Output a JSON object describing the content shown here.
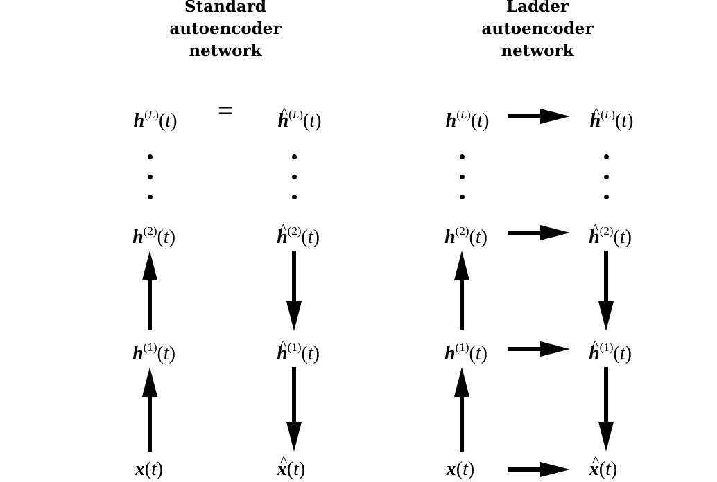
{
  "standard": {
    "title": [
      "Standard",
      "autoencoder",
      "network"
    ],
    "relation": "=",
    "encoder": {
      "top": {
        "sup": "L",
        "arg": "t"
      },
      "l2": {
        "sup": "2",
        "arg": "t"
      },
      "l1": {
        "sup": "1",
        "arg": "t"
      },
      "input": {
        "arg": "t"
      }
    },
    "decoder": {
      "top": {
        "sup": "L",
        "arg": "t"
      },
      "l2": {
        "sup": "2",
        "arg": "t"
      },
      "l1": {
        "sup": "1",
        "arg": "t"
      },
      "input": {
        "arg": "t"
      }
    }
  },
  "ladder": {
    "title": [
      "Ladder",
      "autoencoder",
      "network"
    ],
    "encoder": {
      "top": {
        "sup": "L",
        "arg": "t"
      },
      "l2": {
        "sup": "2",
        "arg": "t"
      },
      "l1": {
        "sup": "1",
        "arg": "t"
      },
      "input": {
        "arg": "t"
      }
    },
    "decoder": {
      "top": {
        "sup": "L",
        "arg": "t"
      },
      "l2": {
        "sup": "2",
        "arg": "t"
      },
      "l1": {
        "sup": "1",
        "arg": "t"
      },
      "input": {
        "arg": "t"
      }
    }
  },
  "symbols": {
    "h": "h",
    "x": "x"
  }
}
